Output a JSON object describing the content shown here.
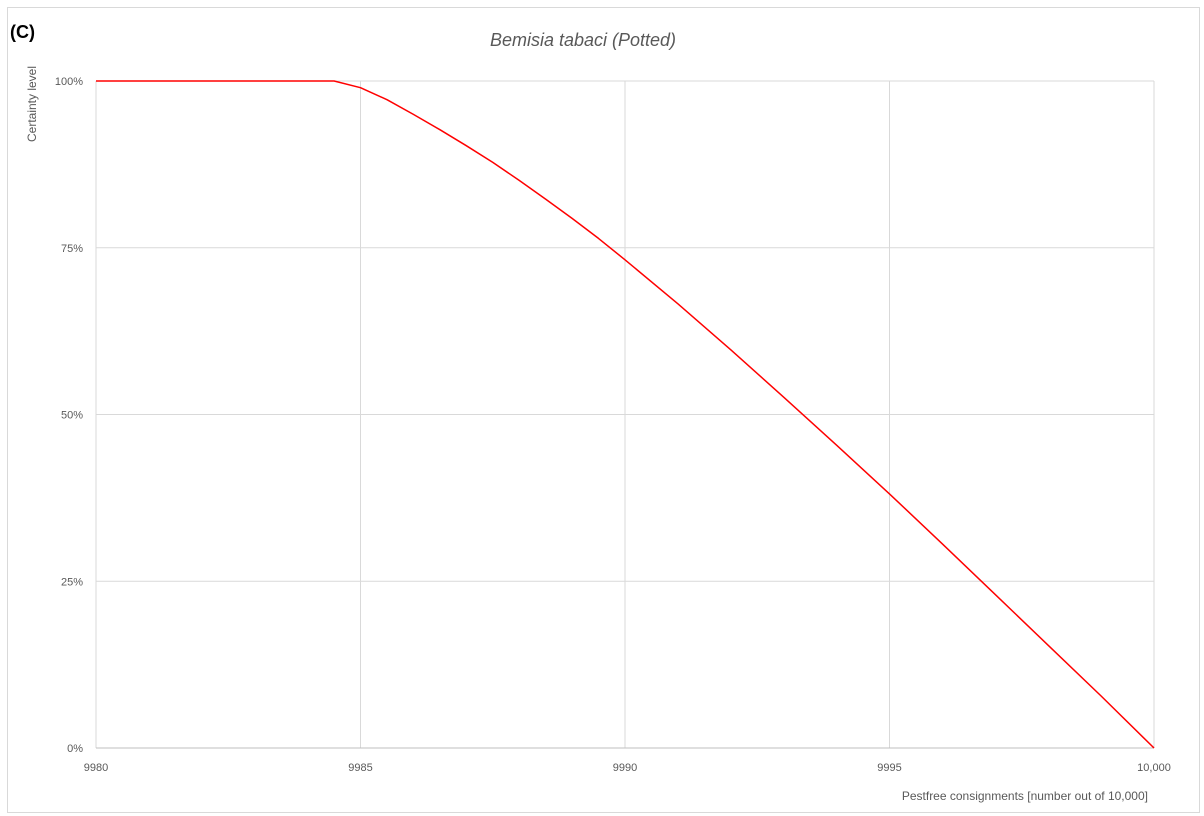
{
  "panel_label": "(C)",
  "chart_data": {
    "type": "line",
    "title": "Bemisia tabaci (Potted)",
    "xlabel": "Pestfree consignments [number out of 10,000]",
    "ylabel": "Certainty level",
    "xlim": [
      9980,
      10000
    ],
    "ylim": [
      0,
      1
    ],
    "x_ticks": [
      9980,
      9985,
      9990,
      9995,
      10000
    ],
    "x_tick_labels": [
      "9980",
      "9985",
      "9990",
      "9995",
      "10,000"
    ],
    "y_ticks": [
      0,
      0.25,
      0.5,
      0.75,
      1
    ],
    "y_tick_labels": [
      "0%",
      "25%",
      "50%",
      "75%",
      "100%"
    ],
    "grid": true,
    "series": [
      {
        "color": "#ff0000",
        "x": [
          9980,
          9984.5,
          9985,
          9985.5,
          9986,
          9986.5,
          9987,
          9987.5,
          9988,
          9988.5,
          9989,
          9989.5,
          9990,
          9991,
          9992,
          9993,
          9994,
          9995,
          9996,
          9997,
          9998,
          9999,
          10000
        ],
        "y": [
          1.0,
          1.0,
          0.99,
          0.972,
          0.95,
          0.927,
          0.903,
          0.878,
          0.851,
          0.823,
          0.794,
          0.764,
          0.732,
          0.666,
          0.597,
          0.526,
          0.454,
          0.381,
          0.306,
          0.23,
          0.154,
          0.078,
          0.0
        ]
      }
    ]
  }
}
